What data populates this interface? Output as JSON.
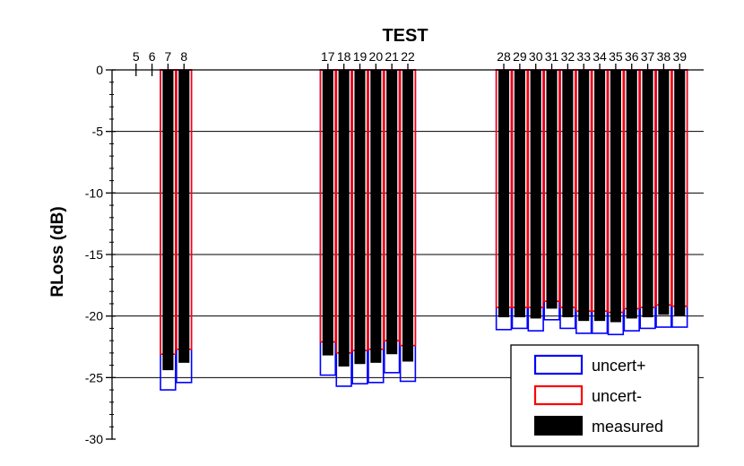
{
  "chart_data": {
    "type": "bar",
    "title": "",
    "xlabel": "TEST",
    "ylabel": "RLoss (dB)",
    "ylim": [
      -30,
      0
    ],
    "yticks": [
      0,
      -5,
      -10,
      -15,
      -20,
      -25,
      -30
    ],
    "xlim": [
      3.5,
      40.5
    ],
    "xtick_labels": [
      5,
      6,
      7,
      8,
      17,
      18,
      19,
      20,
      21,
      22,
      28,
      29,
      30,
      31,
      32,
      33,
      34,
      35,
      36,
      37,
      38,
      39
    ],
    "x_axis_position": "top",
    "grid": "horizontal-major",
    "legend_position": "bottom-right",
    "colors": {
      "measured": "#000000",
      "uncert_plus": "#0000ff",
      "uncert_minus": "#ff0000"
    },
    "x": [
      7,
      8,
      17,
      18,
      19,
      20,
      21,
      22,
      28,
      29,
      30,
      31,
      32,
      33,
      34,
      35,
      36,
      37,
      38,
      39
    ],
    "series": [
      {
        "name": "uncert+",
        "values": [
          -26.0,
          -25.4,
          -24.8,
          -25.7,
          -25.5,
          -25.4,
          -24.6,
          -25.3,
          -21.1,
          -21.0,
          -21.2,
          -20.3,
          -21.0,
          -21.4,
          -21.4,
          -21.5,
          -21.2,
          -21.0,
          -20.9,
          -20.9
        ]
      },
      {
        "name": "uncert-",
        "values": [
          -23.1,
          -22.7,
          -22.1,
          -23.0,
          -22.8,
          -22.7,
          -22.0,
          -22.4,
          -19.3,
          -19.3,
          -19.3,
          -18.8,
          -19.3,
          -19.6,
          -19.6,
          -19.7,
          -19.4,
          -19.3,
          -19.1,
          -19.2
        ]
      },
      {
        "name": "measured",
        "values": [
          -24.4,
          -23.8,
          -23.2,
          -24.1,
          -23.9,
          -23.8,
          -23.1,
          -23.7,
          -20.1,
          -20.1,
          -20.2,
          -19.4,
          -20.1,
          -20.4,
          -20.4,
          -20.5,
          -20.2,
          -20.1,
          -19.9,
          -20.0
        ]
      }
    ],
    "legend": [
      {
        "key": "uncert_plus",
        "label": "uncert+"
      },
      {
        "key": "uncert_minus",
        "label": "uncert-"
      },
      {
        "key": "measured",
        "label": "measured"
      }
    ]
  }
}
